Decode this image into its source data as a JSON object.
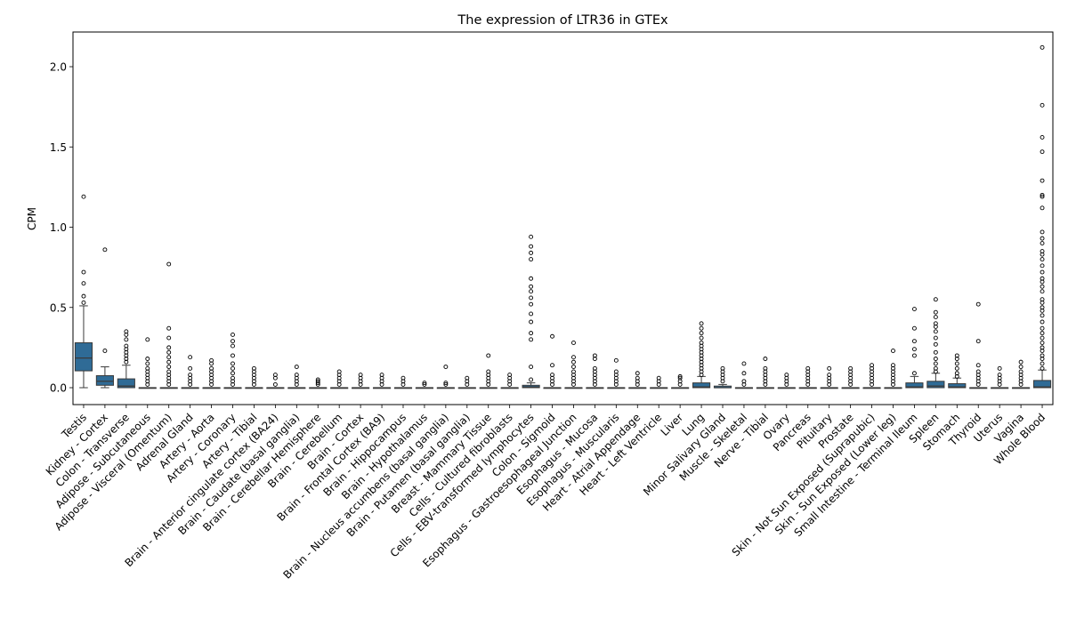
{
  "chart_data": {
    "type": "box",
    "title": "The expression of LTR36 in GTEx",
    "xlabel": "",
    "ylabel": "CPM",
    "ylim": [
      -0.1,
      2.22
    ],
    "yticks": [
      0.0,
      0.5,
      1.0,
      1.5,
      2.0
    ],
    "ytick_labels": [
      "0.0",
      "0.5",
      "1.0",
      "1.5",
      "2.0"
    ],
    "box_color": "#2f6b96",
    "categories": [
      {
        "name": "Testis",
        "whislo": 0.0,
        "q1": 0.105,
        "med": 0.185,
        "q3": 0.28,
        "whishi": 0.51,
        "fliers": [
          0.53,
          0.57,
          0.65,
          0.72,
          1.19
        ]
      },
      {
        "name": "Kidney - Cortex",
        "whislo": 0.0,
        "q1": 0.015,
        "med": 0.04,
        "q3": 0.075,
        "whishi": 0.13,
        "fliers": [
          0.23,
          0.86
        ]
      },
      {
        "name": "Colon - Transverse",
        "whislo": 0.0,
        "q1": 0.0,
        "med": 0.01,
        "q3": 0.055,
        "whishi": 0.14,
        "fliers": [
          0.16,
          0.18,
          0.2,
          0.22,
          0.24,
          0.26,
          0.3,
          0.33,
          0.35
        ]
      },
      {
        "name": "Adipose - Subcutaneous",
        "whislo": 0.0,
        "q1": 0.0,
        "med": 0.0,
        "q3": 0.0,
        "whishi": 0.0,
        "fliers": [
          0.02,
          0.04,
          0.06,
          0.08,
          0.1,
          0.12,
          0.15,
          0.18,
          0.3
        ]
      },
      {
        "name": "Adipose - Visceral (Omentum)",
        "whislo": 0.0,
        "q1": 0.0,
        "med": 0.0,
        "q3": 0.0,
        "whishi": 0.0,
        "fliers": [
          0.02,
          0.04,
          0.06,
          0.08,
          0.1,
          0.13,
          0.16,
          0.19,
          0.22,
          0.25,
          0.31,
          0.37,
          0.77
        ]
      },
      {
        "name": "Adrenal Gland",
        "whislo": 0.0,
        "q1": 0.0,
        "med": 0.0,
        "q3": 0.0,
        "whishi": 0.0,
        "fliers": [
          0.02,
          0.04,
          0.06,
          0.08,
          0.12,
          0.19
        ]
      },
      {
        "name": "Artery - Aorta",
        "whislo": 0.0,
        "q1": 0.0,
        "med": 0.0,
        "q3": 0.0,
        "whishi": 0.0,
        "fliers": [
          0.02,
          0.04,
          0.06,
          0.08,
          0.1,
          0.12,
          0.15,
          0.17
        ]
      },
      {
        "name": "Artery - Coronary",
        "whislo": 0.0,
        "q1": 0.0,
        "med": 0.0,
        "q3": 0.0,
        "whishi": 0.0,
        "fliers": [
          0.02,
          0.04,
          0.06,
          0.09,
          0.12,
          0.15,
          0.2,
          0.26,
          0.29,
          0.33
        ]
      },
      {
        "name": "Artery - Tibial",
        "whislo": 0.0,
        "q1": 0.0,
        "med": 0.0,
        "q3": 0.0,
        "whishi": 0.0,
        "fliers": [
          0.02,
          0.04,
          0.06,
          0.08,
          0.1,
          0.12
        ]
      },
      {
        "name": "Brain - Anterior cingulate cortex (BA24)",
        "whislo": 0.0,
        "q1": 0.0,
        "med": 0.0,
        "q3": 0.0,
        "whishi": 0.0,
        "fliers": [
          0.02,
          0.06,
          0.08
        ]
      },
      {
        "name": "Brain - Caudate (basal ganglia)",
        "whislo": 0.0,
        "q1": 0.0,
        "med": 0.0,
        "q3": 0.0,
        "whishi": 0.0,
        "fliers": [
          0.02,
          0.04,
          0.06,
          0.08,
          0.13
        ]
      },
      {
        "name": "Brain - Cerebellar Hemisphere",
        "whislo": 0.0,
        "q1": 0.0,
        "med": 0.0,
        "q3": 0.0,
        "whishi": 0.0,
        "fliers": [
          0.02,
          0.03,
          0.04,
          0.05
        ]
      },
      {
        "name": "Brain - Cerebellum",
        "whislo": 0.0,
        "q1": 0.0,
        "med": 0.0,
        "q3": 0.0,
        "whishi": 0.0,
        "fliers": [
          0.02,
          0.04,
          0.06,
          0.08,
          0.1
        ]
      },
      {
        "name": "Brain - Cortex",
        "whislo": 0.0,
        "q1": 0.0,
        "med": 0.0,
        "q3": 0.0,
        "whishi": 0.0,
        "fliers": [
          0.02,
          0.04,
          0.06,
          0.08
        ]
      },
      {
        "name": "Brain - Frontal Cortex (BA9)",
        "whislo": 0.0,
        "q1": 0.0,
        "med": 0.0,
        "q3": 0.0,
        "whishi": 0.0,
        "fliers": [
          0.02,
          0.04,
          0.06,
          0.08
        ]
      },
      {
        "name": "Brain - Hippocampus",
        "whislo": 0.0,
        "q1": 0.0,
        "med": 0.0,
        "q3": 0.0,
        "whishi": 0.0,
        "fliers": [
          0.02,
          0.04,
          0.06
        ]
      },
      {
        "name": "Brain - Hypothalamus",
        "whislo": 0.0,
        "q1": 0.0,
        "med": 0.0,
        "q3": 0.0,
        "whishi": 0.0,
        "fliers": [
          0.02,
          0.03
        ]
      },
      {
        "name": "Brain - Nucleus accumbens (basal ganglia)",
        "whislo": 0.0,
        "q1": 0.0,
        "med": 0.0,
        "q3": 0.0,
        "whishi": 0.0,
        "fliers": [
          0.02,
          0.03,
          0.13
        ]
      },
      {
        "name": "Brain - Putamen (basal ganglia)",
        "whislo": 0.0,
        "q1": 0.0,
        "med": 0.0,
        "q3": 0.0,
        "whishi": 0.0,
        "fliers": [
          0.02,
          0.04,
          0.06
        ]
      },
      {
        "name": "Breast - Mammary Tissue",
        "whislo": 0.0,
        "q1": 0.0,
        "med": 0.0,
        "q3": 0.0,
        "whishi": 0.0,
        "fliers": [
          0.02,
          0.04,
          0.06,
          0.08,
          0.1,
          0.2
        ]
      },
      {
        "name": "Cells - Cultured fibroblasts",
        "whislo": 0.0,
        "q1": 0.0,
        "med": 0.0,
        "q3": 0.0,
        "whishi": 0.0,
        "fliers": [
          0.02,
          0.04,
          0.06,
          0.08
        ]
      },
      {
        "name": "Cells - EBV-transformed lymphocytes",
        "whislo": 0.0,
        "q1": 0.0,
        "med": 0.005,
        "q3": 0.015,
        "whishi": 0.03,
        "fliers": [
          0.05,
          0.13,
          0.3,
          0.34,
          0.41,
          0.46,
          0.52,
          0.56,
          0.6,
          0.63,
          0.68,
          0.8,
          0.84,
          0.88,
          0.94
        ]
      },
      {
        "name": "Colon - Sigmoid",
        "whislo": 0.0,
        "q1": 0.0,
        "med": 0.0,
        "q3": 0.0,
        "whishi": 0.0,
        "fliers": [
          0.02,
          0.04,
          0.06,
          0.08,
          0.14,
          0.32
        ]
      },
      {
        "name": "Esophagus - Gastroesophageal Junction",
        "whislo": 0.0,
        "q1": 0.0,
        "med": 0.0,
        "q3": 0.0,
        "whishi": 0.0,
        "fliers": [
          0.02,
          0.04,
          0.06,
          0.08,
          0.1,
          0.13,
          0.16,
          0.19,
          0.28
        ]
      },
      {
        "name": "Esophagus - Mucosa",
        "whislo": 0.0,
        "q1": 0.0,
        "med": 0.0,
        "q3": 0.0,
        "whishi": 0.0,
        "fliers": [
          0.02,
          0.04,
          0.06,
          0.08,
          0.1,
          0.12,
          0.18,
          0.2
        ]
      },
      {
        "name": "Esophagus - Muscularis",
        "whislo": 0.0,
        "q1": 0.0,
        "med": 0.0,
        "q3": 0.0,
        "whishi": 0.0,
        "fliers": [
          0.02,
          0.04,
          0.06,
          0.08,
          0.1,
          0.17
        ]
      },
      {
        "name": "Heart - Atrial Appendage",
        "whislo": 0.0,
        "q1": 0.0,
        "med": 0.0,
        "q3": 0.0,
        "whishi": 0.0,
        "fliers": [
          0.02,
          0.04,
          0.06,
          0.09
        ]
      },
      {
        "name": "Heart - Left Ventricle",
        "whislo": 0.0,
        "q1": 0.0,
        "med": 0.0,
        "q3": 0.0,
        "whishi": 0.0,
        "fliers": [
          0.02,
          0.04,
          0.06
        ]
      },
      {
        "name": "Liver",
        "whislo": 0.0,
        "q1": 0.0,
        "med": 0.0,
        "q3": 0.0,
        "whishi": 0.0,
        "fliers": [
          0.02,
          0.04,
          0.06,
          0.07
        ]
      },
      {
        "name": "Lung",
        "whislo": 0.0,
        "q1": 0.0,
        "med": 0.005,
        "q3": 0.03,
        "whishi": 0.07,
        "fliers": [
          0.08,
          0.1,
          0.12,
          0.14,
          0.16,
          0.18,
          0.2,
          0.22,
          0.24,
          0.26,
          0.28,
          0.31,
          0.34,
          0.37,
          0.4
        ]
      },
      {
        "name": "Minor Salivary Gland",
        "whislo": 0.0,
        "q1": 0.0,
        "med": 0.0,
        "q3": 0.01,
        "whishi": 0.02,
        "fliers": [
          0.04,
          0.06,
          0.08,
          0.1,
          0.12
        ]
      },
      {
        "name": "Muscle - Skeletal",
        "whislo": 0.0,
        "q1": 0.0,
        "med": 0.0,
        "q3": 0.0,
        "whishi": 0.0,
        "fliers": [
          0.02,
          0.04,
          0.09,
          0.15
        ]
      },
      {
        "name": "Nerve - Tibial",
        "whislo": 0.0,
        "q1": 0.0,
        "med": 0.0,
        "q3": 0.0,
        "whishi": 0.0,
        "fliers": [
          0.02,
          0.04,
          0.06,
          0.08,
          0.1,
          0.12,
          0.18
        ]
      },
      {
        "name": "Ovary",
        "whislo": 0.0,
        "q1": 0.0,
        "med": 0.0,
        "q3": 0.0,
        "whishi": 0.0,
        "fliers": [
          0.02,
          0.04,
          0.06,
          0.08
        ]
      },
      {
        "name": "Pancreas",
        "whislo": 0.0,
        "q1": 0.0,
        "med": 0.0,
        "q3": 0.0,
        "whishi": 0.0,
        "fliers": [
          0.02,
          0.04,
          0.06,
          0.08,
          0.1,
          0.12
        ]
      },
      {
        "name": "Pituitary",
        "whislo": 0.0,
        "q1": 0.0,
        "med": 0.0,
        "q3": 0.0,
        "whishi": 0.0,
        "fliers": [
          0.02,
          0.04,
          0.06,
          0.08,
          0.12
        ]
      },
      {
        "name": "Prostate",
        "whislo": 0.0,
        "q1": 0.0,
        "med": 0.0,
        "q3": 0.0,
        "whishi": 0.0,
        "fliers": [
          0.02,
          0.04,
          0.06,
          0.08,
          0.1,
          0.12
        ]
      },
      {
        "name": "Skin - Not Sun Exposed (Suprapubic)",
        "whislo": 0.0,
        "q1": 0.0,
        "med": 0.0,
        "q3": 0.0,
        "whishi": 0.0,
        "fliers": [
          0.02,
          0.04,
          0.06,
          0.08,
          0.1,
          0.12,
          0.14
        ]
      },
      {
        "name": "Skin - Sun Exposed (Lower leg)",
        "whislo": 0.0,
        "q1": 0.0,
        "med": 0.0,
        "q3": 0.0,
        "whishi": 0.0,
        "fliers": [
          0.02,
          0.04,
          0.06,
          0.08,
          0.1,
          0.12,
          0.14,
          0.23
        ]
      },
      {
        "name": "Small Intestine - Terminal Ileum",
        "whislo": 0.0,
        "q1": 0.0,
        "med": 0.005,
        "q3": 0.03,
        "whishi": 0.07,
        "fliers": [
          0.09,
          0.2,
          0.24,
          0.29,
          0.37,
          0.49
        ]
      },
      {
        "name": "Spleen",
        "whislo": 0.0,
        "q1": 0.0,
        "med": 0.01,
        "q3": 0.04,
        "whishi": 0.09,
        "fliers": [
          0.1,
          0.12,
          0.15,
          0.18,
          0.22,
          0.27,
          0.31,
          0.35,
          0.38,
          0.4,
          0.44,
          0.47,
          0.55
        ]
      },
      {
        "name": "Stomach",
        "whislo": 0.0,
        "q1": 0.0,
        "med": 0.005,
        "q3": 0.025,
        "whishi": 0.06,
        "fliers": [
          0.07,
          0.09,
          0.12,
          0.15,
          0.18,
          0.2
        ]
      },
      {
        "name": "Thyroid",
        "whislo": 0.0,
        "q1": 0.0,
        "med": 0.0,
        "q3": 0.0,
        "whishi": 0.0,
        "fliers": [
          0.02,
          0.04,
          0.06,
          0.08,
          0.1,
          0.14,
          0.29,
          0.52
        ]
      },
      {
        "name": "Uterus",
        "whislo": 0.0,
        "q1": 0.0,
        "med": 0.0,
        "q3": 0.0,
        "whishi": 0.0,
        "fliers": [
          0.02,
          0.04,
          0.06,
          0.08,
          0.12
        ]
      },
      {
        "name": "Vagina",
        "whislo": 0.0,
        "q1": 0.0,
        "med": 0.0,
        "q3": 0.0,
        "whishi": 0.0,
        "fliers": [
          0.02,
          0.04,
          0.06,
          0.08,
          0.1,
          0.13,
          0.16
        ]
      },
      {
        "name": "Whole Blood",
        "whislo": 0.0,
        "q1": 0.0,
        "med": 0.005,
        "q3": 0.045,
        "whishi": 0.11,
        "fliers": [
          0.12,
          0.15,
          0.18,
          0.2,
          0.23,
          0.25,
          0.28,
          0.31,
          0.34,
          0.37,
          0.41,
          0.45,
          0.48,
          0.5,
          0.53,
          0.55,
          0.6,
          0.63,
          0.66,
          0.68,
          0.72,
          0.76,
          0.8,
          0.83,
          0.85,
          0.9,
          0.93,
          0.97,
          1.12,
          1.19,
          1.2,
          1.29,
          1.47,
          1.56,
          1.76,
          2.12
        ]
      }
    ]
  }
}
